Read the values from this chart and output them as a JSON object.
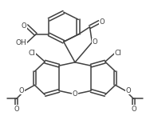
{
  "bg": "#ffffff",
  "lc": "#404040",
  "lw": 1.1,
  "fs": 6.0,
  "figsize": [
    1.88,
    1.6
  ],
  "dpi": 100,
  "xlim": [
    -1.5,
    11.5
  ],
  "ylim": [
    -0.5,
    10.5
  ]
}
